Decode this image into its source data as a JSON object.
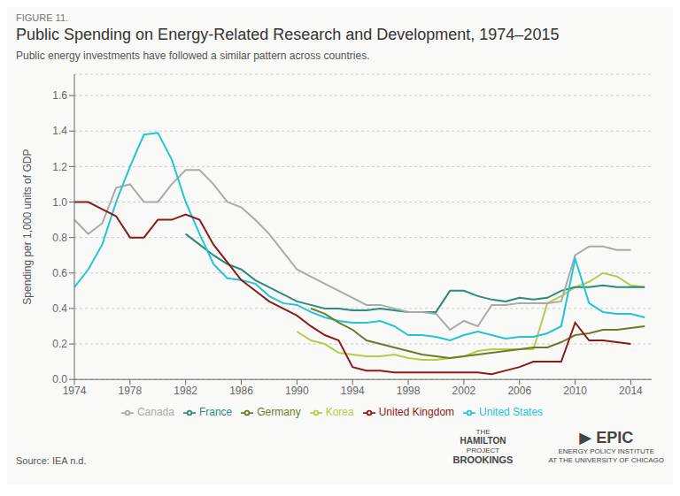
{
  "chart_data": {
    "type": "line",
    "figure_label": "FIGURE 11.",
    "title": "Public Spending on Energy-Related Research and Development, 1974–2015",
    "subtitle": "Public energy investments have followed a similar pattern across countries.",
    "source": "Source: IEA n.d.",
    "annotations": [
      "THE",
      "HAMILTON",
      "PROJECT",
      "BROOKINGS",
      "▶ EPIC",
      "ENERGY POLICY INSTITUTE",
      "AT THE UNIVERSITY OF CHICAGO"
    ],
    "y_label": "Spending per 1,000 units of GDP",
    "x": [
      1974,
      1975,
      1976,
      1977,
      1978,
      1979,
      1980,
      1981,
      1982,
      1983,
      1984,
      1985,
      1986,
      1987,
      1988,
      1989,
      1990,
      1991,
      1992,
      1993,
      1994,
      1995,
      1996,
      1997,
      1998,
      1999,
      2000,
      2001,
      2002,
      2003,
      2004,
      2005,
      2006,
      2007,
      2008,
      2009,
      2010,
      2011,
      2012,
      2013,
      2014,
      2015
    ],
    "xlim": [
      1974,
      2015.5
    ],
    "xticks": [
      1974,
      1978,
      1982,
      1986,
      1990,
      1994,
      1998,
      2002,
      2006,
      2010,
      2014
    ],
    "ylim": [
      0.0,
      1.72
    ],
    "yticks": [
      {
        "value": 0.0,
        "label": "0.0"
      },
      0.2,
      0.4,
      0.6,
      0.8,
      {
        "value": 1.0,
        "label": "1.0"
      },
      1.2,
      1.4,
      1.6
    ],
    "grid": true,
    "legend": "bottom",
    "series": [
      {
        "name": "Korea",
        "color": "#b5cc4a",
        "values": [
          null,
          null,
          null,
          null,
          null,
          null,
          null,
          null,
          null,
          null,
          null,
          null,
          null,
          null,
          null,
          null,
          0.27,
          0.22,
          0.2,
          0.15,
          0.14,
          0.13,
          0.13,
          0.14,
          0.12,
          0.11,
          0.11,
          0.12,
          0.13,
          0.16,
          0.17,
          0.17,
          0.17,
          0.17,
          0.43,
          0.47,
          0.52,
          0.55,
          0.6,
          0.58,
          0.53,
          0.52
        ]
      },
      {
        "name": "France",
        "color": "#2a8c7a",
        "values": [
          null,
          null,
          null,
          null,
          null,
          null,
          null,
          null,
          0.82,
          0.76,
          0.7,
          0.65,
          0.62,
          0.56,
          0.52,
          0.48,
          0.44,
          0.42,
          0.4,
          0.4,
          0.39,
          0.39,
          0.4,
          0.39,
          0.38,
          0.38,
          0.38,
          0.5,
          0.5,
          0.47,
          0.45,
          0.44,
          0.46,
          0.45,
          0.46,
          0.5,
          0.52,
          0.52,
          0.53,
          0.52,
          0.52,
          0.52
        ]
      },
      {
        "name": "Canada",
        "color": "#aaaaaa",
        "values": [
          0.9,
          0.82,
          0.88,
          1.08,
          1.1,
          1.0,
          1.0,
          1.1,
          1.18,
          1.18,
          1.1,
          1.0,
          0.97,
          0.9,
          0.82,
          0.72,
          0.62,
          0.58,
          0.54,
          0.5,
          0.46,
          0.42,
          0.42,
          0.4,
          0.38,
          0.38,
          0.37,
          0.28,
          0.33,
          0.3,
          0.42,
          0.42,
          0.43,
          0.43,
          0.43,
          0.44,
          0.7,
          0.75,
          0.75,
          0.73,
          0.73,
          null
        ]
      },
      {
        "name": "United States",
        "color": "#22c4d8",
        "values": [
          0.52,
          0.62,
          0.76,
          1.0,
          1.2,
          1.38,
          1.39,
          1.24,
          1.0,
          0.82,
          0.65,
          0.57,
          0.56,
          0.54,
          0.47,
          0.43,
          0.42,
          0.38,
          0.35,
          0.33,
          0.32,
          0.32,
          0.33,
          0.3,
          0.25,
          0.25,
          0.24,
          0.22,
          0.25,
          0.27,
          0.25,
          0.23,
          0.24,
          0.24,
          0.26,
          0.3,
          0.68,
          0.43,
          0.38,
          0.37,
          0.37,
          0.35
        ]
      },
      {
        "name": "Germany",
        "color": "#6b7c28",
        "values": [
          null,
          null,
          null,
          null,
          null,
          null,
          null,
          null,
          null,
          null,
          null,
          null,
          null,
          null,
          null,
          null,
          null,
          0.4,
          0.37,
          0.32,
          0.28,
          0.22,
          0.2,
          0.18,
          0.16,
          0.14,
          0.13,
          0.12,
          0.13,
          0.14,
          0.15,
          0.16,
          0.17,
          0.18,
          0.18,
          0.21,
          0.25,
          0.26,
          0.28,
          0.28,
          0.29,
          0.3
        ]
      },
      {
        "name": "United Kingdom",
        "color": "#8b1a1a",
        "values": [
          1.0,
          1.0,
          0.96,
          0.92,
          0.8,
          0.8,
          0.9,
          0.9,
          0.93,
          0.9,
          0.76,
          0.66,
          0.56,
          0.5,
          0.44,
          0.4,
          0.36,
          0.3,
          0.25,
          0.22,
          0.07,
          0.05,
          0.05,
          0.04,
          0.04,
          0.04,
          0.04,
          0.04,
          0.04,
          0.04,
          0.03,
          0.05,
          0.07,
          0.1,
          0.1,
          0.1,
          0.32,
          0.22,
          0.22,
          0.21,
          0.2,
          null
        ]
      }
    ]
  }
}
